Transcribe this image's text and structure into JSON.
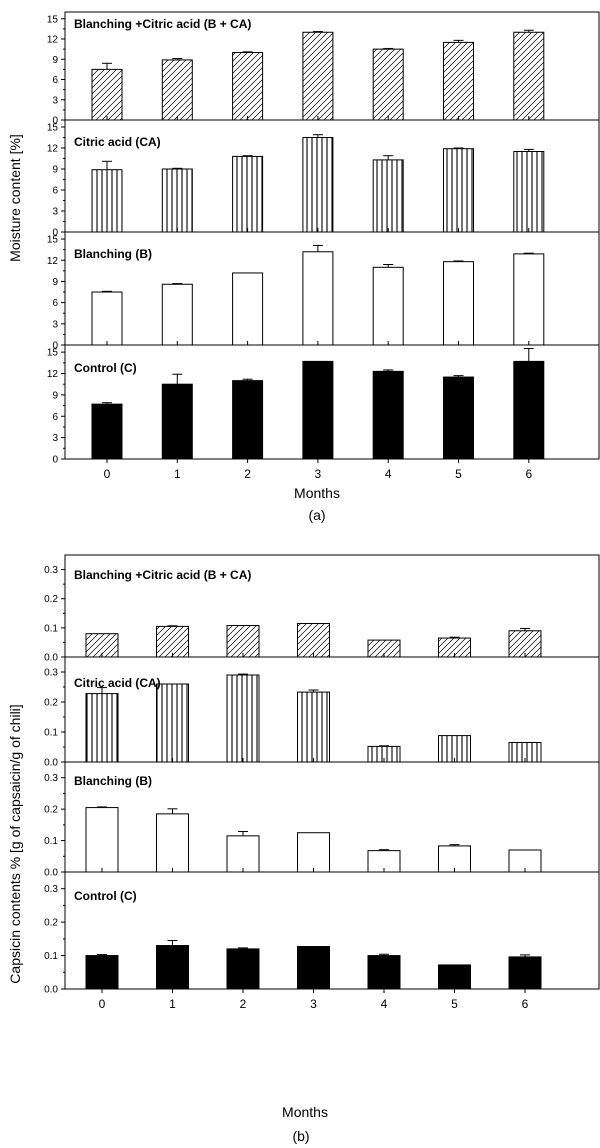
{
  "chart_data": [
    {
      "type": "bar",
      "subfigure_label": "(a)",
      "xlabel": "Months",
      "ylabel": "Moisture content [%]",
      "categories": [
        "0",
        "1",
        "2",
        "3",
        "4",
        "5",
        "6"
      ],
      "panels": [
        {
          "name": "Blanching +Citric acid (B + CA)",
          "pattern": "hatch",
          "ylim": [
            0,
            16
          ],
          "yticks": [
            "0",
            "3",
            "6",
            "9",
            "12",
            "15"
          ],
          "values": [
            7.5,
            8.9,
            10.0,
            13.0,
            10.5,
            11.5,
            13.0
          ],
          "errors": [
            0.9,
            0.2,
            0.1,
            0.1,
            0.1,
            0.3,
            0.3
          ]
        },
        {
          "name": "Citric acid (CA)",
          "pattern": "vlines",
          "ylim": [
            0,
            16
          ],
          "yticks": [
            "0",
            "3",
            "6",
            "9",
            "12",
            "15"
          ],
          "values": [
            8.9,
            9.0,
            10.8,
            13.5,
            10.3,
            11.9,
            11.5
          ],
          "errors": [
            1.2,
            0.1,
            0.1,
            0.4,
            0.6,
            0.1,
            0.3
          ]
        },
        {
          "name": "Blanching (B)",
          "pattern": "empty",
          "ylim": [
            0,
            16
          ],
          "yticks": [
            "0",
            "3",
            "6",
            "9",
            "12",
            "15"
          ],
          "values": [
            7.5,
            8.6,
            10.2,
            13.2,
            11.0,
            11.8,
            12.9
          ],
          "errors": [
            0.1,
            0.1,
            0.0,
            0.9,
            0.4,
            0.1,
            0.1
          ]
        },
        {
          "name": "Control (C)",
          "pattern": "solid",
          "ylim": [
            0,
            16
          ],
          "yticks": [
            "0",
            "3",
            "6",
            "9",
            "12",
            "15"
          ],
          "values": [
            7.7,
            10.5,
            11.0,
            13.7,
            12.3,
            11.5,
            13.7
          ],
          "errors": [
            0.2,
            1.4,
            0.2,
            0.0,
            0.2,
            0.2,
            1.8
          ]
        }
      ]
    },
    {
      "type": "bar",
      "subfigure_label": "(b)",
      "xlabel": "Months",
      "ylabel": "Capsicin contents % [g of capsaicin/g of chili]",
      "categories": [
        "0",
        "1",
        "2",
        "3",
        "4",
        "5",
        "6"
      ],
      "panels": [
        {
          "name": "Blanching +Citric acid (B + CA)",
          "pattern": "hatch",
          "ylim": [
            0,
            0.35
          ],
          "yticks": [
            "0.0",
            "0.1",
            "0.2",
            "0.3"
          ],
          "values": [
            0.08,
            0.105,
            0.108,
            0.115,
            0.058,
            0.065,
            0.09
          ],
          "errors": [
            0.0,
            0.002,
            0.0,
            0.0,
            0.0,
            0.003,
            0.008
          ]
        },
        {
          "name": "Citric acid (CA)",
          "pattern": "vlines",
          "ylim": [
            0,
            0.35
          ],
          "yticks": [
            "0.0",
            "0.1",
            "0.2",
            "0.3"
          ],
          "values": [
            0.228,
            0.26,
            0.29,
            0.233,
            0.052,
            0.088,
            0.065
          ],
          "errors": [
            0.02,
            0.0,
            0.003,
            0.007,
            0.002,
            0.0,
            0.0
          ]
        },
        {
          "name": "Blanching (B)",
          "pattern": "empty",
          "ylim": [
            0,
            0.35
          ],
          "yticks": [
            "0.0",
            "0.1",
            "0.2",
            "0.3"
          ],
          "values": [
            0.205,
            0.185,
            0.115,
            0.125,
            0.068,
            0.083,
            0.07
          ],
          "errors": [
            0.002,
            0.016,
            0.014,
            0.0,
            0.003,
            0.004,
            0.0
          ]
        },
        {
          "name": "Control (C)",
          "pattern": "solid",
          "ylim": [
            0,
            0.35
          ],
          "yticks": [
            "0.0",
            "0.1",
            "0.2",
            "0.3"
          ],
          "values": [
            0.1,
            0.13,
            0.12,
            0.127,
            0.1,
            0.072,
            0.096
          ],
          "errors": [
            0.003,
            0.015,
            0.003,
            0.0,
            0.004,
            0.0,
            0.006
          ]
        }
      ]
    }
  ]
}
